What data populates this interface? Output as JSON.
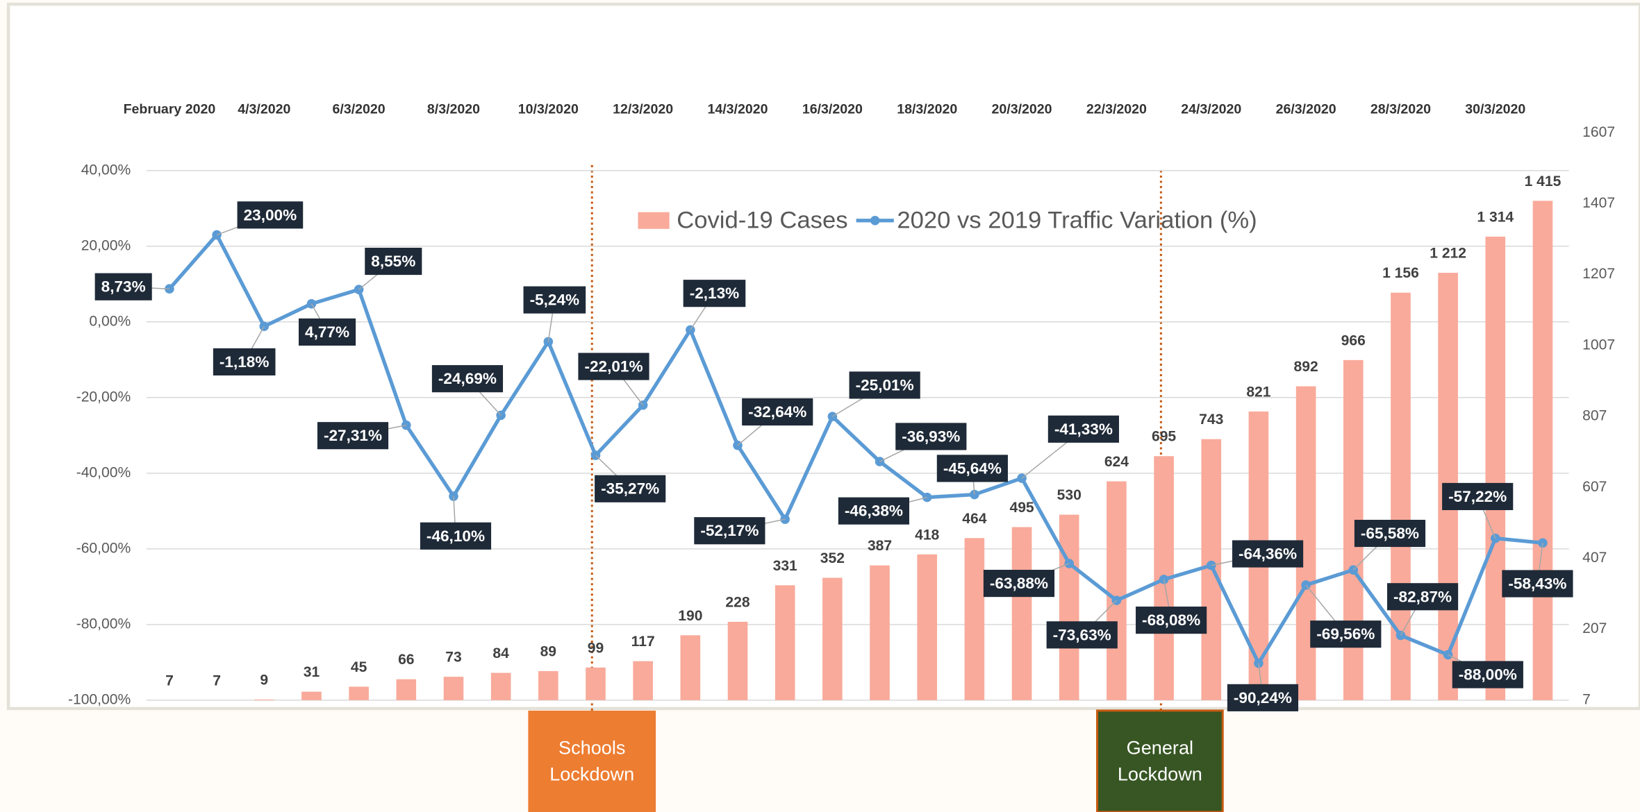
{
  "chart_data": {
    "type": "bar-line",
    "categories": [
      "February 2020",
      null,
      "4/3/2020",
      null,
      "6/3/2020",
      null,
      "8/3/2020",
      null,
      "10/3/2020",
      null,
      "12/3/2020",
      null,
      "14/3/2020",
      null,
      "16/3/2020",
      null,
      "18/3/2020",
      null,
      "20/3/2020",
      null,
      "22/3/2020",
      null,
      "24/3/2020",
      null,
      "26/3/2020",
      null,
      "28/3/2020",
      null,
      "30/3/2020",
      null
    ],
    "series": [
      {
        "name": "Covid-19 Cases",
        "type": "bar",
        "axis": "y2",
        "color": "#f9aa9a",
        "values": [
          7,
          7,
          9,
          31,
          45,
          66,
          73,
          84,
          89,
          99,
          117,
          190,
          228,
          331,
          352,
          387,
          418,
          464,
          495,
          530,
          624,
          695,
          743,
          821,
          892,
          966,
          1156,
          1212,
          1314,
          1415
        ],
        "value_labels": [
          "7",
          "7",
          "9",
          "31",
          "45",
          "66",
          "73",
          "84",
          "89",
          "99",
          "117",
          "190",
          "228",
          "331",
          "352",
          "387",
          "418",
          "464",
          "495",
          "530",
          "624",
          "695",
          "743",
          "821",
          "892",
          "966",
          "1 156",
          "1 212",
          "1 314",
          "1 415"
        ]
      },
      {
        "name": "2020 vs 2019 Traffic Variation (%)",
        "type": "line",
        "axis": "y",
        "color": "#5b9bd5",
        "values": [
          8.73,
          23.0,
          -1.18,
          4.77,
          8.55,
          -27.31,
          -46.1,
          -24.69,
          -5.24,
          -35.27,
          -22.01,
          -2.13,
          -32.64,
          -52.17,
          -25.01,
          -36.93,
          -46.38,
          -45.64,
          -41.33,
          -63.88,
          -73.63,
          -68.08,
          -64.36,
          -90.24,
          -69.56,
          -65.58,
          -82.87,
          -88.0,
          -57.22,
          -58.43
        ],
        "value_labels": [
          "8,73%",
          "23,00%",
          "-1,18%",
          "4,77%",
          "8,55%",
          "-27,31%",
          "-46,10%",
          "-24,69%",
          "-5,24%",
          "-35,27%",
          "-22,01%",
          "-2,13%",
          "-32,64%",
          "-52,17%",
          "-25,01%",
          "-36,93%",
          "-46,38%",
          "-45,64%",
          "-41,33%",
          "-63,88%",
          "-73,63%",
          "-68,08%",
          "-64,36%",
          "-90,24%",
          "-69,56%",
          "-65,58%",
          "-82,87%",
          "-88,00%",
          "-57,22%",
          "-58,43%"
        ]
      }
    ],
    "ylim": [
      -100,
      50
    ],
    "yticks": [
      {
        "value": -100,
        "label": "-100,00%"
      },
      {
        "value": -80,
        "label": "-80,00%"
      },
      {
        "value": -60,
        "label": "-60,00%"
      },
      {
        "value": -40,
        "label": "-40,00%"
      },
      {
        "value": -20,
        "label": "-20,00%"
      },
      {
        "value": 0,
        "label": "0,00%"
      },
      {
        "value": 20,
        "label": "20,00%"
      },
      {
        "value": 40,
        "label": "40,00%"
      }
    ],
    "y2lim": [
      7,
      1607
    ],
    "y2ticks": [
      7,
      207,
      407,
      607,
      807,
      1007,
      1207,
      1407,
      1607
    ],
    "grid": true,
    "legend": "top",
    "annotations": [
      "Schools Lockdown",
      "General Lockdown"
    ]
  }
}
